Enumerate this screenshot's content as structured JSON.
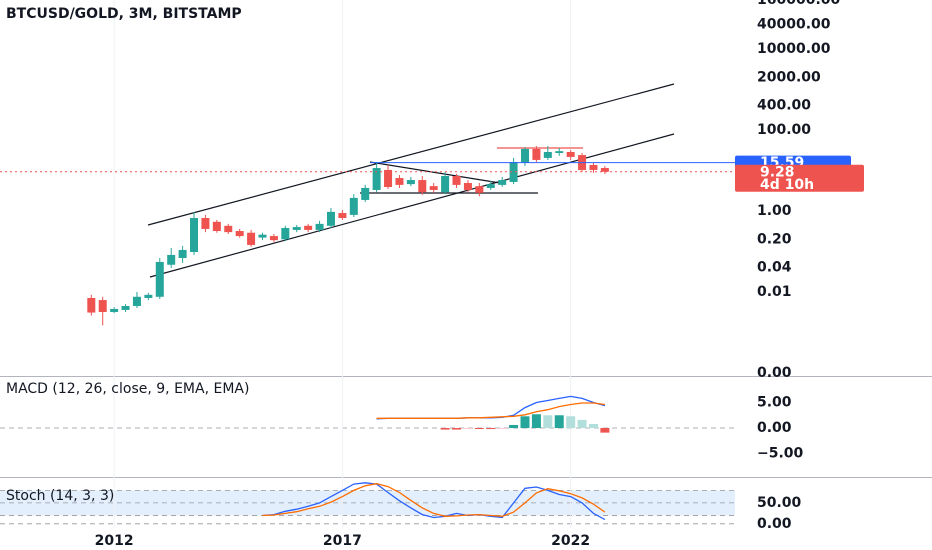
{
  "chart_data": [
    {
      "type": "candlestick",
      "title": "BTCUSD/GOLD, 3M, BITSTAMP",
      "log_scale": true,
      "x": [
        2011.5,
        2011.75,
        2012,
        2012.25,
        2012.5,
        2012.75,
        2013,
        2013.25,
        2013.5,
        2013.75,
        2014,
        2014.25,
        2014.5,
        2014.75,
        2015,
        2015.25,
        2015.5,
        2015.75,
        2016,
        2016.25,
        2016.5,
        2016.75,
        2017,
        2017.25,
        2017.5,
        2017.75,
        2018,
        2018.25,
        2018.5,
        2018.75,
        2019,
        2019.25,
        2019.5,
        2019.75,
        2020,
        2020.25,
        2020.5,
        2020.75,
        2021,
        2021.25,
        2021.5,
        2021.75,
        2022,
        2022.25,
        2022.5,
        2022.75
      ],
      "xlim": [
        2009.5,
        2025.6
      ],
      "open": [
        0.0071,
        0.0063,
        0.0032,
        0.0036,
        0.0045,
        0.0071,
        0.0076,
        0.047,
        0.069,
        0.097,
        0.67,
        0.54,
        0.43,
        0.32,
        0.29,
        0.22,
        0.24,
        0.2,
        0.34,
        0.43,
        0.34,
        0.43,
        0.89,
        0.8,
        1.87,
        3.3,
        10.3,
        6.5,
        4.6,
        5.8,
        4.1,
        2.9,
        7.3,
        4.9,
        4.1,
        3.7,
        4.4,
        5.2,
        15.3,
        34,
        20.4,
        27,
        28.6,
        24,
        13.7,
        11.5
      ],
      "high": [
        0.0085,
        0.0076,
        0.0042,
        0.005,
        0.01,
        0.0095,
        0.069,
        0.122,
        0.137,
        0.95,
        0.8,
        0.6,
        0.48,
        0.36,
        0.34,
        0.29,
        0.27,
        0.43,
        0.45,
        0.48,
        0.57,
        1.19,
        1.06,
        2.6,
        4.4,
        16.2,
        13.7,
        7.7,
        6.9,
        7.3,
        4.9,
        9.2,
        8.2,
        5.8,
        4.9,
        5.5,
        6.9,
        20.4,
        38,
        40,
        40,
        36,
        32,
        27,
        15.3,
        12.9
      ],
      "low": [
        0.0026,
        0.0015,
        0.003,
        0.0032,
        0.004,
        0.0063,
        0.0067,
        0.039,
        0.052,
        0.082,
        0.3,
        0.29,
        0.27,
        0.22,
        0.13,
        0.19,
        0.17,
        0.18,
        0.3,
        0.3,
        0.3,
        0.38,
        0.6,
        0.71,
        1.67,
        2.9,
        3.5,
        3.7,
        4.1,
        2.5,
        2.8,
        2.6,
        3.7,
        2.9,
        2.3,
        3.3,
        3.9,
        4.6,
        12.9,
        16.2,
        18.2,
        23,
        18.2,
        9.2,
        8.7,
        8.2
      ],
      "close": [
        0.0031,
        0.0032,
        0.0038,
        0.0045,
        0.0076,
        0.0085,
        0.055,
        0.082,
        0.109,
        0.67,
        0.36,
        0.32,
        0.3,
        0.24,
        0.145,
        0.26,
        0.19,
        0.38,
        0.4,
        0.34,
        0.48,
        0.95,
        0.67,
        2.1,
        3.7,
        11.5,
        3.9,
        4.4,
        5.8,
        2.9,
        3.3,
        7.3,
        4.4,
        3.3,
        2.8,
        4.6,
        5.8,
        16.2,
        34,
        18.2,
        28.6,
        30,
        21.6,
        10.3,
        10.3,
        9.28
      ],
      "up_color": "#26a69a",
      "down_color": "#ef5350",
      "ylim": [
        8.9e-05,
        162000
      ],
      "yticks": [
        {
          "value": 160000,
          "label": "160000.00"
        },
        {
          "value": 40000,
          "label": "40000.00"
        },
        {
          "value": 10000,
          "label": "10000.00"
        },
        {
          "value": 2000,
          "label": "2000.00"
        },
        {
          "value": 400,
          "label": "400.00"
        },
        {
          "value": 100,
          "label": "100.00"
        },
        {
          "value": 1,
          "label": "1.00"
        },
        {
          "value": 0.2,
          "label": "0.20"
        },
        0.04,
        0.01,
        {
          "value": 0.0001,
          "label": "0.00"
        }
      ],
      "price_lines": [
        {
          "value": 15.59,
          "color": "#2962ff"
        },
        {
          "value": 9.28,
          "color": "#ef5350",
          "countdown": "4d 10h"
        }
      ]
    },
    {
      "type": "macd",
      "title": "MACD (12, 26, close, 9, EMA, EMA)",
      "macd": {
        "color": "#2962ff",
        "values": [
          null,
          null,
          null,
          null,
          null,
          null,
          null,
          null,
          null,
          null,
          null,
          null,
          null,
          null,
          null,
          null,
          null,
          null,
          null,
          null,
          null,
          null,
          null,
          null,
          null,
          1.8,
          1.9,
          1.9,
          1.9,
          1.9,
          1.9,
          1.9,
          1.9,
          2.0,
          2.0,
          2.0,
          2.1,
          2.5,
          4.0,
          5.0,
          5.4,
          5.8,
          6.2,
          5.8,
          5.0,
          4.4
        ]
      },
      "signal": {
        "color": "#ff6d00",
        "values": [
          null,
          null,
          null,
          null,
          null,
          null,
          null,
          null,
          null,
          null,
          null,
          null,
          null,
          null,
          null,
          null,
          null,
          null,
          null,
          null,
          null,
          null,
          null,
          null,
          null,
          1.9,
          1.9,
          1.9,
          1.9,
          1.9,
          1.9,
          1.9,
          1.9,
          2.0,
          2.0,
          2.1,
          2.2,
          2.3,
          2.6,
          3.2,
          3.6,
          4.2,
          4.6,
          4.9,
          4.9,
          4.6
        ]
      },
      "histogram": {
        "colors": [
          "#26a69a",
          "#b2dfdb",
          "#ef5350",
          "#ffcdd2"
        ],
        "values": [
          null,
          null,
          null,
          null,
          null,
          null,
          null,
          null,
          null,
          null,
          null,
          null,
          null,
          null,
          null,
          null,
          null,
          null,
          null,
          null,
          null,
          null,
          null,
          null,
          null,
          null,
          null,
          null,
          null,
          null,
          null,
          -0.3,
          -0.3,
          -0.2,
          -0.2,
          -0.2,
          -0.1,
          0.6,
          2.3,
          2.7,
          2.5,
          2.5,
          2.3,
          1.6,
          0.8,
          -0.9
        ]
      },
      "ylim": [
        -9.2,
        9.8
      ],
      "yticks": [
        {
          "value": 5,
          "label": "5.00"
        },
        {
          "value": 0,
          "label": "0.00"
        },
        {
          "value": -5,
          "label": "−5.00"
        }
      ]
    },
    {
      "type": "stoch",
      "title": "Stoch (14, 3, 3)",
      "k": {
        "color": "#2962ff",
        "values": [
          null,
          null,
          null,
          null,
          null,
          null,
          null,
          null,
          null,
          null,
          null,
          null,
          null,
          null,
          null,
          20,
          22,
          30,
          35,
          42,
          50,
          65,
          80,
          95,
          98,
          95,
          75,
          55,
          38,
          22,
          15,
          18,
          25,
          20,
          22,
          18,
          15,
          50,
          85,
          88,
          80,
          70,
          65,
          50,
          25,
          10
        ]
      },
      "d": {
        "color": "#ff6d00",
        "values": [
          null,
          null,
          null,
          null,
          null,
          null,
          null,
          null,
          null,
          null,
          null,
          null,
          null,
          null,
          null,
          20,
          21,
          25,
          29,
          36,
          42,
          52,
          65,
          80,
          91,
          96,
          89,
          75,
          56,
          38,
          25,
          18,
          19,
          21,
          22,
          20,
          18,
          28,
          50,
          74,
          84,
          79,
          72,
          62,
          47,
          28
        ]
      },
      "band": [
        20,
        80
      ],
      "band_color": "#e3effc",
      "ylim": [
        -10,
        100
      ],
      "yticks": [
        {
          "value": 50,
          "label": "50.00"
        },
        {
          "value": 0,
          "label": "0.00"
        }
      ],
      "xticks": [
        2012,
        2017,
        2022
      ],
      "grid": true
    }
  ]
}
